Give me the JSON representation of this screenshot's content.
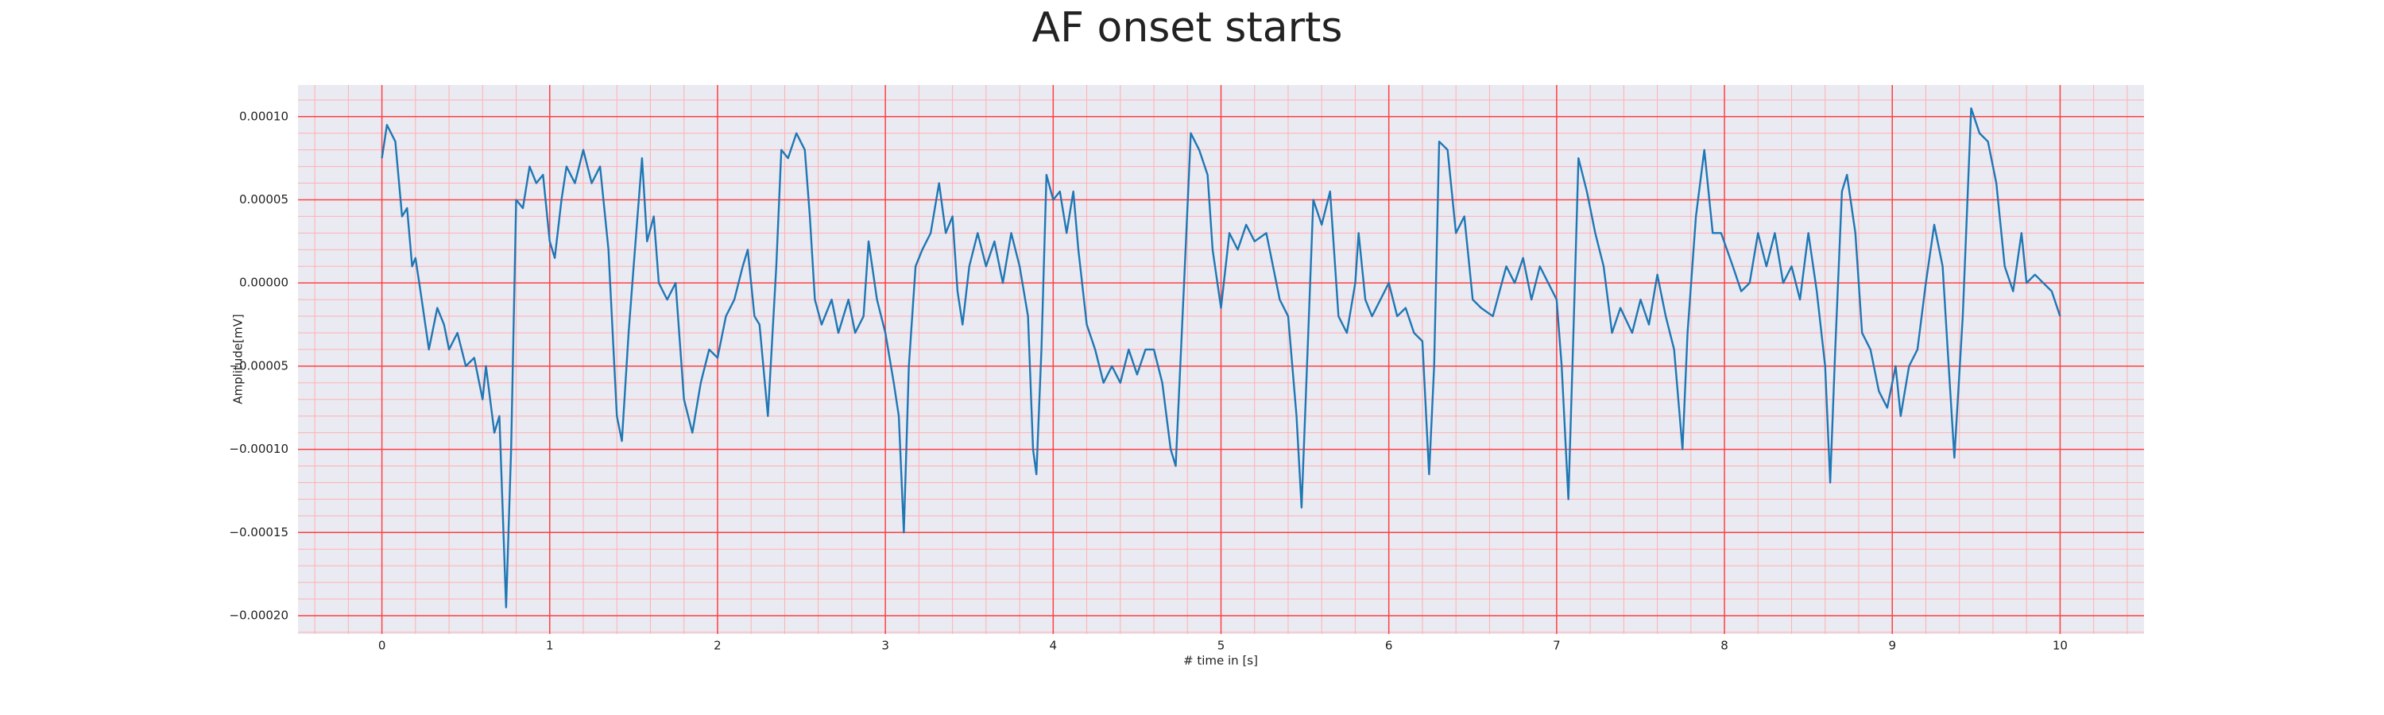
{
  "chart_data": {
    "type": "line",
    "title": "AF onset starts",
    "xlabel": "# time in [s]",
    "ylabel": "Amplitude[mV]",
    "color": "#1f77b4",
    "grid": true,
    "x": [
      0,
      0.03,
      0.08,
      0.12,
      0.15,
      0.18,
      0.2,
      0.23,
      0.28,
      0.33,
      0.37,
      0.4,
      0.45,
      0.5,
      0.55,
      0.6,
      0.62,
      0.67,
      0.7,
      0.74,
      0.77,
      0.8,
      0.84,
      0.88,
      0.92,
      0.96,
      1.0,
      1.03,
      1.07,
      1.1,
      1.15,
      1.2,
      1.25,
      1.3,
      1.35,
      1.4,
      1.43,
      1.47,
      1.5,
      1.55,
      1.58,
      1.62,
      1.65,
      1.7,
      1.75,
      1.8,
      1.85,
      1.9,
      1.95,
      2.0,
      2.05,
      2.1,
      2.15,
      2.18,
      2.22,
      2.25,
      2.3,
      2.35,
      2.38,
      2.42,
      2.47,
      2.52,
      2.55,
      2.58,
      2.62,
      2.68,
      2.72,
      2.78,
      2.82,
      2.87,
      2.9,
      2.95,
      3.0,
      3.05,
      3.08,
      3.11,
      3.14,
      3.18,
      3.22,
      3.27,
      3.32,
      3.36,
      3.4,
      3.43,
      3.46,
      3.5,
      3.55,
      3.6,
      3.65,
      3.7,
      3.75,
      3.8,
      3.85,
      3.88,
      3.9,
      3.93,
      3.96,
      4.0,
      4.04,
      4.08,
      4.12,
      4.15,
      4.2,
      4.25,
      4.3,
      4.35,
      4.4,
      4.45,
      4.5,
      4.55,
      4.6,
      4.65,
      4.7,
      4.73,
      4.78,
      4.82,
      4.87,
      4.92,
      4.95,
      5.0,
      5.05,
      5.1,
      5.15,
      5.2,
      5.27,
      5.35,
      5.4,
      5.45,
      5.48,
      5.52,
      5.55,
      5.6,
      5.65,
      5.7,
      5.75,
      5.8,
      5.82,
      5.86,
      5.9,
      5.95,
      6.0,
      6.05,
      6.1,
      6.15,
      6.2,
      6.24,
      6.27,
      6.3,
      6.35,
      6.4,
      6.45,
      6.5,
      6.55,
      6.62,
      6.7,
      6.75,
      6.8,
      6.85,
      6.9,
      6.95,
      7.0,
      7.03,
      7.07,
      7.1,
      7.13,
      7.18,
      7.23,
      7.28,
      7.33,
      7.38,
      7.45,
      7.5,
      7.55,
      7.6,
      7.65,
      7.7,
      7.75,
      7.78,
      7.83,
      7.88,
      7.93,
      7.98,
      8.05,
      8.1,
      8.15,
      8.2,
      8.25,
      8.3,
      8.35,
      8.4,
      8.45,
      8.5,
      8.55,
      8.6,
      8.63,
      8.66,
      8.7,
      8.73,
      8.78,
      8.82,
      8.87,
      8.92,
      8.97,
      9.02,
      9.05,
      9.1,
      9.15,
      9.2,
      9.25,
      9.3,
      9.33,
      9.37,
      9.42,
      9.47,
      9.52,
      9.57,
      9.62,
      9.67,
      9.72,
      9.77,
      9.8,
      9.85,
      9.9,
      9.95,
      10.0
    ],
    "values": [
      7.5e-05,
      9.5e-05,
      8.5e-05,
      4e-05,
      4.5e-05,
      1e-05,
      1.5e-05,
      -5e-06,
      -4e-05,
      -1.5e-05,
      -2.5e-05,
      -4e-05,
      -3e-05,
      -5e-05,
      -4.5e-05,
      -7e-05,
      -5e-05,
      -9e-05,
      -8e-05,
      -0.000195,
      -0.0001,
      5e-05,
      4.5e-05,
      7e-05,
      6e-05,
      6.5e-05,
      2.5e-05,
      1.5e-05,
      5e-05,
      7e-05,
      6e-05,
      8e-05,
      6e-05,
      7e-05,
      2e-05,
      -8e-05,
      -9.5e-05,
      -3e-05,
      1e-05,
      7.5e-05,
      2.5e-05,
      4e-05,
      0,
      -1e-05,
      0,
      -7e-05,
      -9e-05,
      -6e-05,
      -4e-05,
      -4.5e-05,
      -2e-05,
      -1e-05,
      1e-05,
      2e-05,
      -2e-05,
      -2.5e-05,
      -8e-05,
      1e-05,
      8e-05,
      7.5e-05,
      9e-05,
      8e-05,
      4e-05,
      -1e-05,
      -2.5e-05,
      -1e-05,
      -3e-05,
      -1e-05,
      -3e-05,
      -2e-05,
      2.5e-05,
      -1e-05,
      -3e-05,
      -6e-05,
      -8e-05,
      -0.00015,
      -5e-05,
      1e-05,
      2e-05,
      3e-05,
      6e-05,
      3e-05,
      4e-05,
      -5e-06,
      -2.5e-05,
      1e-05,
      3e-05,
      1e-05,
      2.5e-05,
      0,
      3e-05,
      1e-05,
      -2e-05,
      -0.0001,
      -0.000115,
      -4e-05,
      6.5e-05,
      5e-05,
      5.5e-05,
      3e-05,
      5.5e-05,
      2e-05,
      -2.5e-05,
      -4e-05,
      -6e-05,
      -5e-05,
      -6e-05,
      -4e-05,
      -5.5e-05,
      -4e-05,
      -4e-05,
      -6e-05,
      -0.0001,
      -0.00011,
      0,
      9e-05,
      8e-05,
      6.5e-05,
      2e-05,
      -1.5e-05,
      3e-05,
      2e-05,
      3.5e-05,
      2.5e-05,
      3e-05,
      -1e-05,
      -2e-05,
      -8e-05,
      -0.000135,
      -3e-05,
      5e-05,
      3.5e-05,
      5.5e-05,
      -2e-05,
      -3e-05,
      0,
      3e-05,
      -1e-05,
      -2e-05,
      -1e-05,
      0,
      -2e-05,
      -1.5e-05,
      -3e-05,
      -3.5e-05,
      -0.000115,
      -5e-05,
      8.5e-05,
      8e-05,
      3e-05,
      4e-05,
      -1e-05,
      -1.5e-05,
      -2e-05,
      1e-05,
      0,
      1.5e-05,
      -1e-05,
      1e-05,
      0,
      -1e-05,
      -5e-05,
      -0.00013,
      -3e-05,
      7.5e-05,
      5.5e-05,
      3e-05,
      1e-05,
      -3e-05,
      -1.5e-05,
      -3e-05,
      -1e-05,
      -2.5e-05,
      5e-06,
      -2e-05,
      -4e-05,
      -0.0001,
      -3e-05,
      4e-05,
      8e-05,
      3e-05,
      3e-05,
      1e-05,
      -5e-06,
      0,
      3e-05,
      1e-05,
      3e-05,
      0,
      1e-05,
      -1e-05,
      3e-05,
      -5e-06,
      -5e-05,
      -0.00012,
      -4e-05,
      5.5e-05,
      6.5e-05,
      3e-05,
      -3e-05,
      -4e-05,
      -6.5e-05,
      -7.5e-05,
      -5e-05,
      -8e-05,
      -5e-05,
      -4e-05,
      0,
      3.5e-05,
      1e-05,
      -4e-05,
      -0.000105,
      -2e-05,
      0.000105,
      9e-05,
      8.5e-05,
      6e-05,
      1e-05,
      -5e-06,
      3e-05,
      0,
      5e-06,
      0,
      -5e-06,
      -2e-05
    ],
    "xlim": [
      -0.5,
      10.5
    ],
    "ylim": [
      -0.000211,
      0.000119
    ],
    "xticks": [
      0,
      1,
      2,
      3,
      4,
      5,
      6,
      7,
      8,
      9,
      10
    ],
    "yticks": [
      {
        "value": -0.0002,
        "label": "−0.00020"
      },
      {
        "value": -0.00015,
        "label": "−0.00015"
      },
      {
        "value": -0.0001,
        "label": "−0.00010"
      },
      {
        "value": -5e-05,
        "label": "−0.00005"
      },
      {
        "value": 0,
        "label": "0.00000"
      },
      {
        "value": 5e-05,
        "label": "0.00005"
      },
      {
        "value": 0.0001,
        "label": "0.00010"
      }
    ],
    "xminor": [
      -0.4,
      -0.2,
      0.2,
      0.4,
      0.6,
      0.8,
      1.2,
      1.4,
      1.6,
      1.8,
      2.2,
      2.4,
      2.6,
      2.8,
      3.2,
      3.4,
      3.6,
      3.8,
      4.2,
      4.4,
      4.6,
      4.8,
      5.2,
      5.4,
      5.6,
      5.8,
      6.2,
      6.4,
      6.6,
      6.8,
      7.2,
      7.4,
      7.6,
      7.8,
      8.2,
      8.4,
      8.6,
      8.8,
      9.2,
      9.4,
      9.6,
      9.8,
      10.2,
      10.4
    ],
    "yminor": [
      -0.00021,
      -0.00019,
      -0.00018,
      -0.00017,
      -0.00016,
      -0.00014,
      -0.00013,
      -0.00012,
      -0.00011,
      -9e-05,
      -8e-05,
      -7e-05,
      -6e-05,
      -4e-05,
      -3e-05,
      -2e-05,
      -1e-05,
      1e-05,
      2e-05,
      3e-05,
      4e-05,
      6e-05,
      7e-05,
      8e-05,
      9e-05,
      0.00011
    ]
  }
}
